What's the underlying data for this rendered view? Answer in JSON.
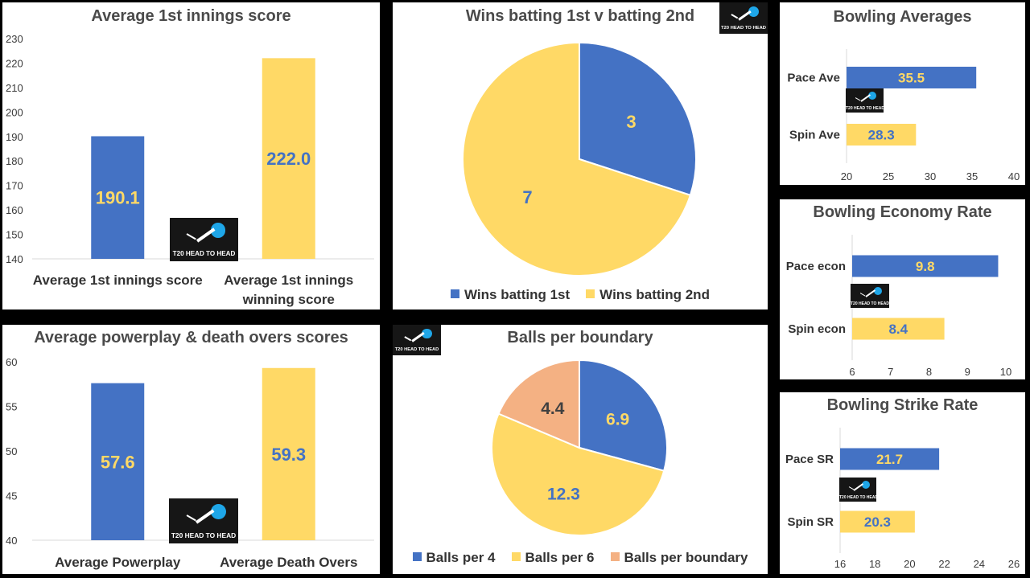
{
  "colors": {
    "blue": "#4472c4",
    "yellow": "#ffd966",
    "peach": "#f4b183",
    "blue_label": "#ffd966",
    "yellow_label": "#4472c4",
    "peach_label": "#404040"
  },
  "logo": {
    "text": "T20 HEAD TO HEAD",
    "icon": "cricket-ball-icon"
  },
  "chart_data": [
    {
      "id": "first_innings",
      "type": "bar",
      "title": "Average 1st innings score",
      "categories": [
        "Average 1st innings score",
        "Average 1st innings winning score"
      ],
      "category_lines": [
        [
          "Average 1st innings score"
        ],
        [
          "Average 1st innings",
          "winning score"
        ]
      ],
      "values": [
        190.1,
        222.0
      ],
      "value_labels": [
        "190.1",
        "222.0"
      ],
      "ylim": [
        140,
        230
      ],
      "yticks": [
        140,
        150,
        160,
        170,
        180,
        190,
        200,
        210,
        220,
        230
      ],
      "colors": [
        "#4472c4",
        "#ffd966"
      ]
    },
    {
      "id": "wins_pie",
      "type": "pie",
      "title": "Wins batting 1st v batting 2nd",
      "labels": [
        "Wins batting 1st",
        "Wins batting 2nd"
      ],
      "values": [
        3,
        7
      ],
      "value_labels": [
        "3",
        "7"
      ],
      "colors": [
        "#4472c4",
        "#ffd966"
      ],
      "legend": "bottom"
    },
    {
      "id": "bowling_avg",
      "type": "bar",
      "orientation": "horizontal",
      "title": "Bowling Averages",
      "categories": [
        "Pace Ave",
        "Spin Ave"
      ],
      "values": [
        35.5,
        28.3
      ],
      "value_labels": [
        "35.5",
        "28.3"
      ],
      "xlim": [
        20,
        40
      ],
      "xticks": [
        20,
        25,
        30,
        35,
        40
      ],
      "colors": [
        "#4472c4",
        "#ffd966"
      ]
    },
    {
      "id": "economy",
      "type": "bar",
      "orientation": "horizontal",
      "title": "Bowling Economy Rate",
      "categories": [
        "Pace econ",
        "Spin econ"
      ],
      "values": [
        9.8,
        8.4
      ],
      "value_labels": [
        "9.8",
        "8.4"
      ],
      "xlim": [
        6,
        10
      ],
      "xticks": [
        6,
        7,
        8,
        9,
        10
      ],
      "colors": [
        "#4472c4",
        "#ffd966"
      ]
    },
    {
      "id": "powerplay",
      "type": "bar",
      "title": "Average powerplay & death overs scores",
      "categories": [
        "Average Powerplay",
        "Average Death Overs"
      ],
      "category_lines": [
        [
          "Average Powerplay"
        ],
        [
          "Average Death Overs"
        ]
      ],
      "values": [
        57.6,
        59.3
      ],
      "value_labels": [
        "57.6",
        "59.3"
      ],
      "ylim": [
        40,
        60
      ],
      "yticks": [
        40,
        45,
        50,
        55,
        60
      ],
      "colors": [
        "#4472c4",
        "#ffd966"
      ]
    },
    {
      "id": "balls_pie",
      "type": "pie",
      "title": "Balls per boundary",
      "labels": [
        "Balls per 4",
        "Balls per 6",
        "Balls per boundary"
      ],
      "values": [
        6.9,
        12.3,
        4.4
      ],
      "value_labels": [
        "6.9",
        "12.3",
        "4.4"
      ],
      "colors": [
        "#4472c4",
        "#ffd966",
        "#f4b183"
      ],
      "legend": "bottom"
    },
    {
      "id": "strike_rate",
      "type": "bar",
      "orientation": "horizontal",
      "title": "Bowling Strike Rate",
      "categories": [
        "Pace SR",
        "Spin SR"
      ],
      "values": [
        21.7,
        20.3
      ],
      "value_labels": [
        "21.7",
        "20.3"
      ],
      "xlim": [
        16,
        26
      ],
      "xticks": [
        16,
        18,
        20,
        22,
        24,
        26
      ],
      "colors": [
        "#4472c4",
        "#ffd966"
      ]
    }
  ]
}
